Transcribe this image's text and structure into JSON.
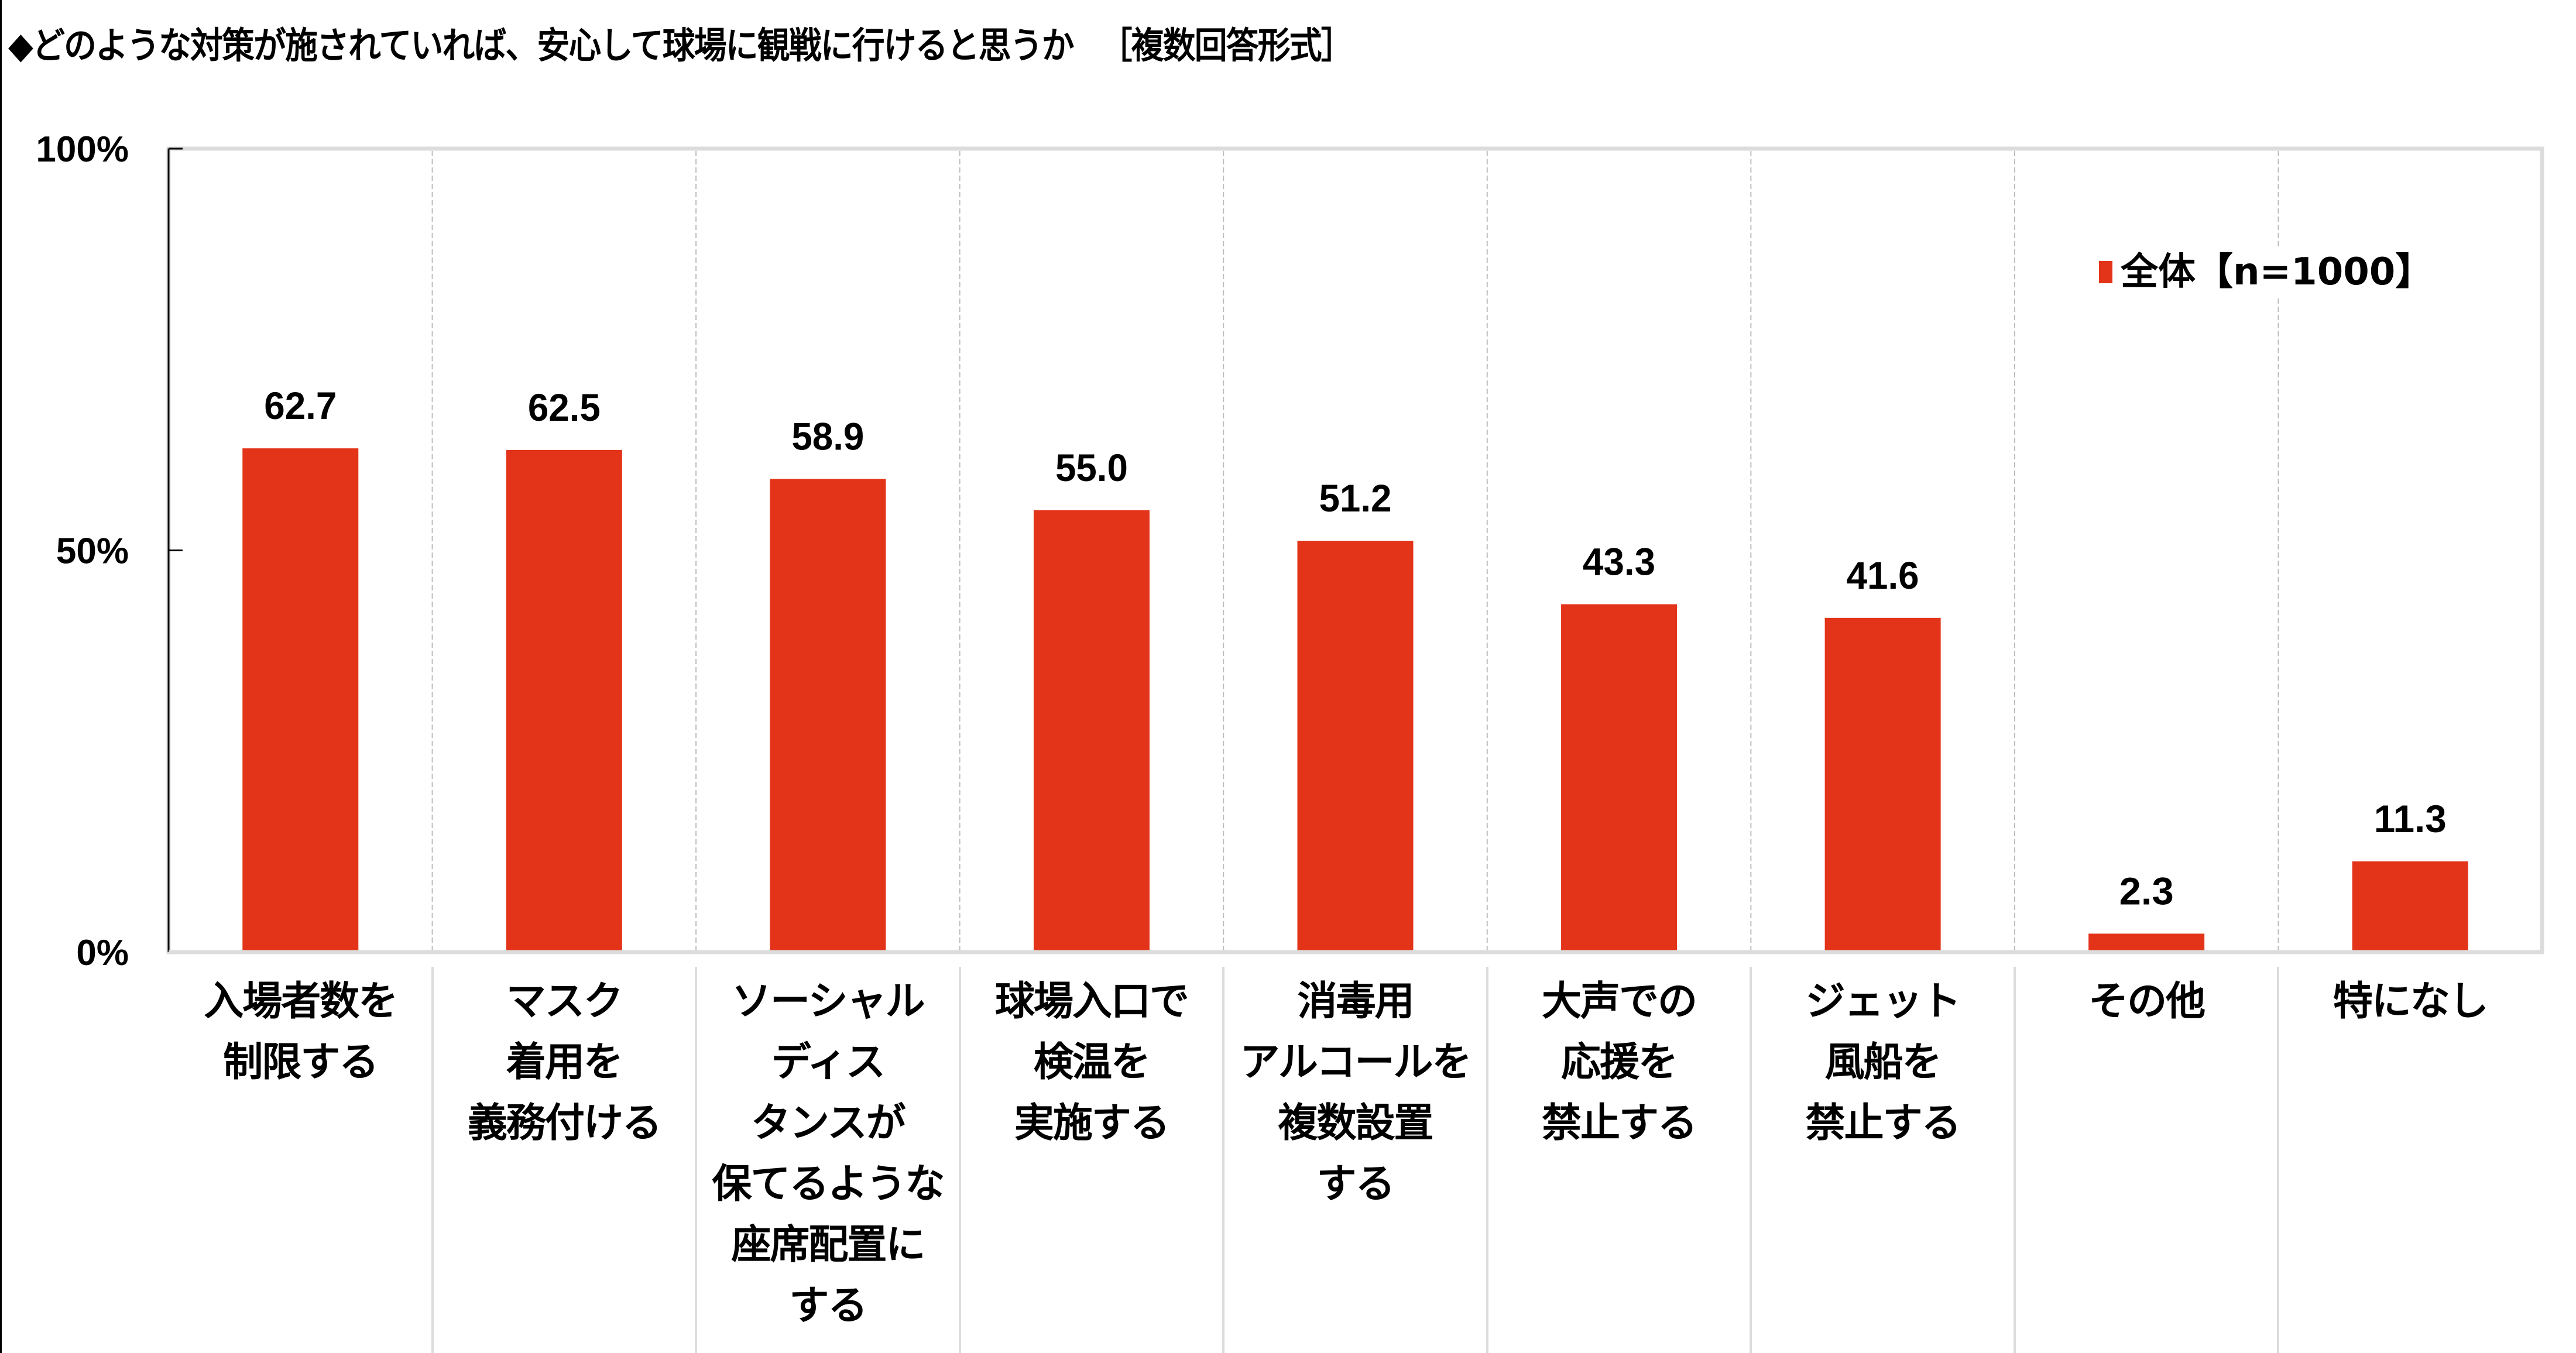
{
  "title": {
    "main": "◆どのような対策が施されていれば、安心して球場に観戦に行けると思うか",
    "sub": "［複数回答形式］"
  },
  "legend": {
    "label": "全体【n=1000】",
    "color": "#e3341a"
  },
  "chart_data": {
    "type": "bar",
    "title": "◆どのような対策が施されていれば、安心して球場に観戦に行けると思うか ［複数回答形式］",
    "xlabel": "",
    "ylabel": "",
    "ylim": [
      0,
      100
    ],
    "yticks": [
      {
        "value": 0,
        "label": "0%"
      },
      {
        "value": 50,
        "label": "50%"
      },
      {
        "value": 100,
        "label": "100%"
      }
    ],
    "grid": "vertical dashed category separators",
    "legend_position": "top-right",
    "categories": [
      [
        "入場者数を",
        "制限する"
      ],
      [
        "マスク",
        "着用を",
        "義務付ける"
      ],
      [
        "ソーシャル",
        "ディス",
        "タンスが",
        "保てるような",
        "座席配置に",
        "する"
      ],
      [
        "球場入口で",
        "検温を",
        "実施する"
      ],
      [
        "消毒用",
        "アルコールを",
        "複数設置",
        "する"
      ],
      [
        "大声での",
        "応援を",
        "禁止する"
      ],
      [
        "ジェット",
        "風船を",
        "禁止する"
      ],
      [
        "その他"
      ],
      [
        "特になし"
      ]
    ],
    "series": [
      {
        "name": "全体【n=1000】",
        "color": "#e3341a",
        "values": [
          62.7,
          62.5,
          58.9,
          55.0,
          51.2,
          43.3,
          41.6,
          2.3,
          11.3
        ],
        "labels": [
          "62.7",
          "62.5",
          "58.9",
          "55.0",
          "51.2",
          "43.3",
          "41.6",
          "2.3",
          "11.3"
        ]
      }
    ]
  }
}
